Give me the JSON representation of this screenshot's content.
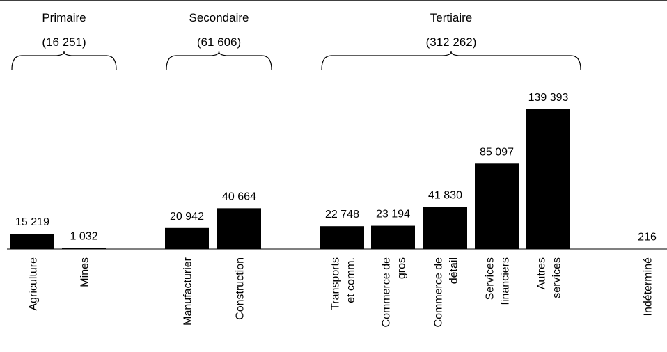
{
  "chart_data": {
    "type": "bar",
    "title": "",
    "xlabel": "",
    "ylabel": "",
    "ylim": [
      0,
      139393
    ],
    "grid": false,
    "legend": "none",
    "bar_color": "#000000",
    "categories": [
      "Agriculture",
      "Mines",
      "Manufacturier",
      "Construction",
      "Transports et comm.",
      "Commerce de gros",
      "Commerce de détail",
      "Services financiers",
      "Autres services",
      "Indéterminé"
    ],
    "category_lines": [
      [
        "Agriculture"
      ],
      [
        "Mines"
      ],
      [
        "Manufacturier"
      ],
      [
        "Construction"
      ],
      [
        "Transports",
        "et comm."
      ],
      [
        "Commerce de",
        "gros"
      ],
      [
        "Commerce de",
        "détail"
      ],
      [
        "Services",
        "financiers"
      ],
      [
        "Autres",
        "services"
      ],
      [
        "Indéterminé"
      ]
    ],
    "values": [
      15219,
      1032,
      20942,
      40664,
      22748,
      23194,
      41830,
      85097,
      139393,
      216
    ],
    "value_labels": [
      "15 219",
      "1 032",
      "20 942",
      "40 664",
      "22 748",
      "23 194",
      "41 830",
      "85 097",
      "139 393",
      "216"
    ],
    "groups": [
      {
        "name": "Primaire",
        "total": "(16 251)",
        "members": [
          0,
          1
        ]
      },
      {
        "name": "Secondaire",
        "total": "(61 606)",
        "members": [
          2,
          3
        ]
      },
      {
        "name": "Tertiaire",
        "total": "(312 262)",
        "members": [
          4,
          5,
          6,
          7,
          8
        ]
      }
    ]
  }
}
